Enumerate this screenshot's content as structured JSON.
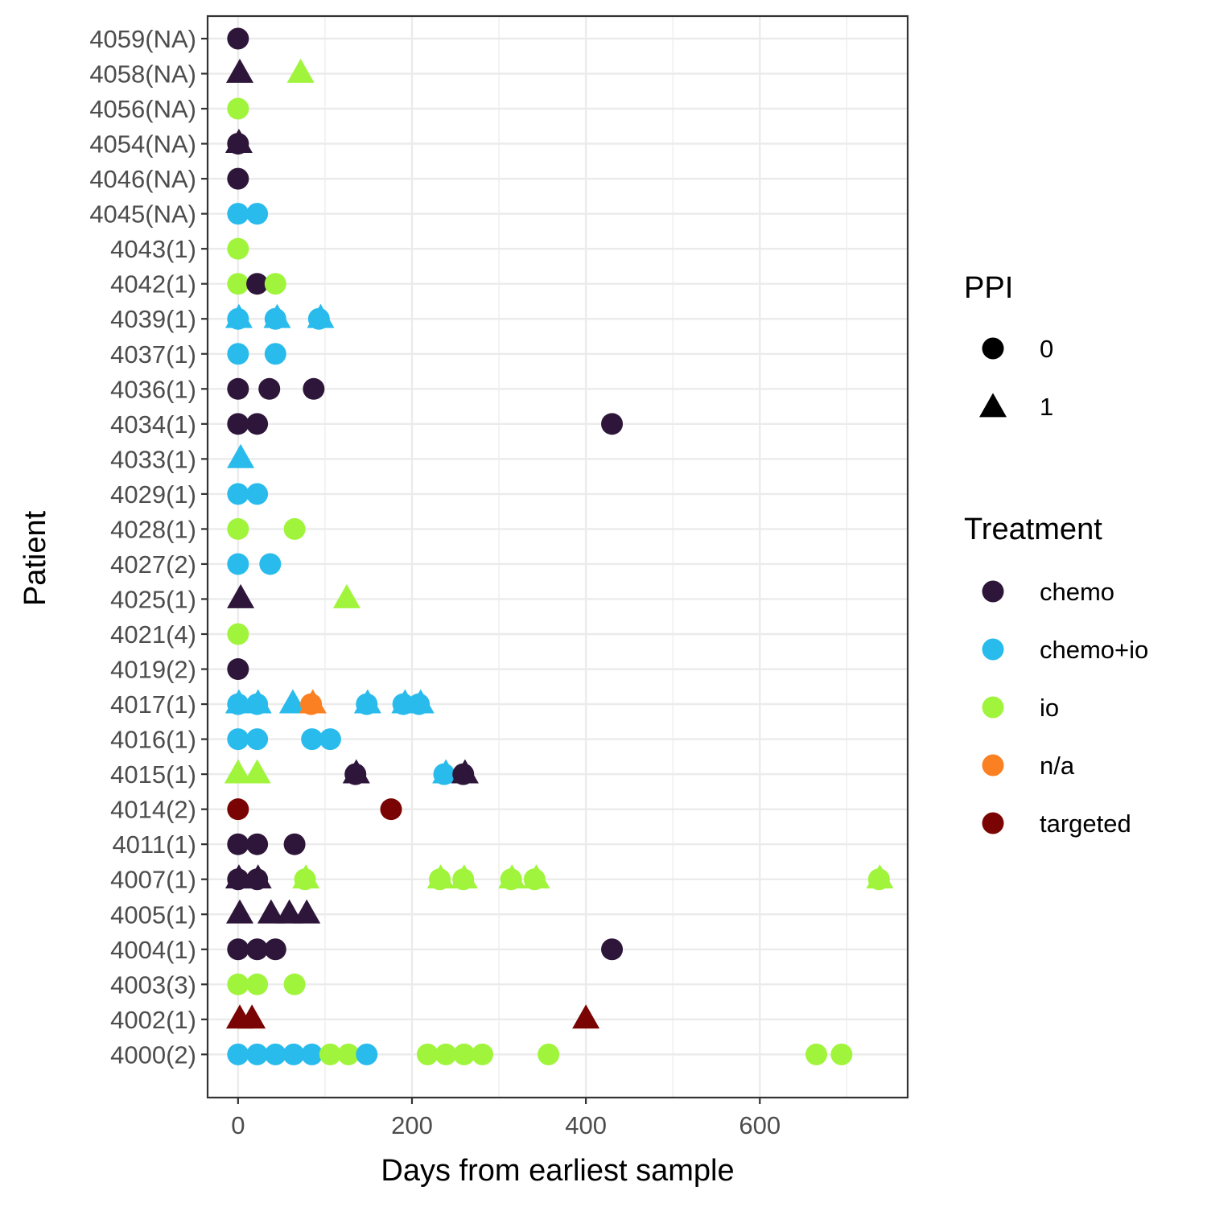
{
  "chart_data": {
    "type": "scatter",
    "title": "",
    "xlabel": "Days from earliest sample",
    "ylabel": "Patient",
    "xlim": [
      -35,
      770
    ],
    "x_ticks": [
      0,
      200,
      400,
      600
    ],
    "grid": true,
    "legend_position": "right",
    "patients": [
      "4000(2)",
      "4002(1)",
      "4003(3)",
      "4004(1)",
      "4005(1)",
      "4007(1)",
      "4011(1)",
      "4014(2)",
      "4015(1)",
      "4016(1)",
      "4017(1)",
      "4019(2)",
      "4021(4)",
      "4025(1)",
      "4027(2)",
      "4028(1)",
      "4029(1)",
      "4033(1)",
      "4034(1)",
      "4036(1)",
      "4037(1)",
      "4039(1)",
      "4042(1)",
      "4043(1)",
      "4045(NA)",
      "4046(NA)",
      "4054(NA)",
      "4056(NA)",
      "4058(NA)",
      "4059(NA)"
    ],
    "legend": {
      "ppi": {
        "title": "PPI",
        "entries": [
          {
            "value": "0",
            "shape": "circle"
          },
          {
            "value": "1",
            "shape": "triangle"
          }
        ]
      },
      "treatment": {
        "title": "Treatment",
        "entries": [
          {
            "name": "chemo",
            "color": "#2d1639"
          },
          {
            "name": "chemo+io",
            "color": "#29bbec"
          },
          {
            "name": "io",
            "color": "#a0f53c"
          },
          {
            "name": "n/a",
            "color": "#fb8022"
          },
          {
            "name": "targeted",
            "color": "#7a0403"
          }
        ]
      }
    },
    "points": [
      {
        "patient": "4059(NA)",
        "day": 0,
        "treatment": "chemo",
        "ppi": 0
      },
      {
        "patient": "4058(NA)",
        "day": 2,
        "treatment": "chemo",
        "ppi": 1
      },
      {
        "patient": "4058(NA)",
        "day": 72,
        "treatment": "io",
        "ppi": 1
      },
      {
        "patient": "4056(NA)",
        "day": 0,
        "treatment": "io",
        "ppi": 0
      },
      {
        "patient": "4054(NA)",
        "day": 0,
        "treatment": "chemo",
        "ppi": 0
      },
      {
        "patient": "4054(NA)",
        "day": 1,
        "treatment": "chemo",
        "ppi": 1
      },
      {
        "patient": "4046(NA)",
        "day": 0,
        "treatment": "chemo",
        "ppi": 0
      },
      {
        "patient": "4045(NA)",
        "day": 0,
        "treatment": "chemo+io",
        "ppi": 0
      },
      {
        "patient": "4045(NA)",
        "day": 22,
        "treatment": "chemo+io",
        "ppi": 0
      },
      {
        "patient": "4043(1)",
        "day": 0,
        "treatment": "io",
        "ppi": 0
      },
      {
        "patient": "4042(1)",
        "day": 0,
        "treatment": "io",
        "ppi": 0
      },
      {
        "patient": "4042(1)",
        "day": 22,
        "treatment": "chemo",
        "ppi": 0
      },
      {
        "patient": "4042(1)",
        "day": 43,
        "treatment": "io",
        "ppi": 0
      },
      {
        "patient": "4039(1)",
        "day": 0,
        "treatment": "chemo+io",
        "ppi": 0
      },
      {
        "patient": "4039(1)",
        "day": 1,
        "treatment": "chemo+io",
        "ppi": 1
      },
      {
        "patient": "4039(1)",
        "day": 43,
        "treatment": "chemo+io",
        "ppi": 0
      },
      {
        "patient": "4039(1)",
        "day": 45,
        "treatment": "chemo+io",
        "ppi": 1
      },
      {
        "patient": "4039(1)",
        "day": 93,
        "treatment": "chemo+io",
        "ppi": 0
      },
      {
        "patient": "4039(1)",
        "day": 95,
        "treatment": "chemo+io",
        "ppi": 1
      },
      {
        "patient": "4037(1)",
        "day": 0,
        "treatment": "chemo+io",
        "ppi": 0
      },
      {
        "patient": "4037(1)",
        "day": 43,
        "treatment": "chemo+io",
        "ppi": 0
      },
      {
        "patient": "4036(1)",
        "day": 0,
        "treatment": "chemo",
        "ppi": 0
      },
      {
        "patient": "4036(1)",
        "day": 36,
        "treatment": "chemo",
        "ppi": 0
      },
      {
        "patient": "4036(1)",
        "day": 87,
        "treatment": "chemo",
        "ppi": 0
      },
      {
        "patient": "4034(1)",
        "day": 0,
        "treatment": "chemo",
        "ppi": 0
      },
      {
        "patient": "4034(1)",
        "day": 22,
        "treatment": "chemo",
        "ppi": 0
      },
      {
        "patient": "4034(1)",
        "day": 430,
        "treatment": "chemo",
        "ppi": 0
      },
      {
        "patient": "4033(1)",
        "day": 3,
        "treatment": "chemo+io",
        "ppi": 1
      },
      {
        "patient": "4029(1)",
        "day": 0,
        "treatment": "chemo+io",
        "ppi": 0
      },
      {
        "patient": "4029(1)",
        "day": 22,
        "treatment": "chemo+io",
        "ppi": 0
      },
      {
        "patient": "4028(1)",
        "day": 0,
        "treatment": "io",
        "ppi": 0
      },
      {
        "patient": "4028(1)",
        "day": 65,
        "treatment": "io",
        "ppi": 0
      },
      {
        "patient": "4027(2)",
        "day": 0,
        "treatment": "chemo+io",
        "ppi": 0
      },
      {
        "patient": "4027(2)",
        "day": 37,
        "treatment": "chemo+io",
        "ppi": 0
      },
      {
        "patient": "4025(1)",
        "day": 3,
        "treatment": "chemo",
        "ppi": 1
      },
      {
        "patient": "4025(1)",
        "day": 125,
        "treatment": "io",
        "ppi": 1
      },
      {
        "patient": "4021(4)",
        "day": 0,
        "treatment": "io",
        "ppi": 0
      },
      {
        "patient": "4019(2)",
        "day": 0,
        "treatment": "chemo",
        "ppi": 0
      },
      {
        "patient": "4017(1)",
        "day": 0,
        "treatment": "chemo+io",
        "ppi": 0
      },
      {
        "patient": "4017(1)",
        "day": 1,
        "treatment": "chemo+io",
        "ppi": 1
      },
      {
        "patient": "4017(1)",
        "day": 22,
        "treatment": "chemo+io",
        "ppi": 0
      },
      {
        "patient": "4017(1)",
        "day": 23,
        "treatment": "chemo+io",
        "ppi": 1
      },
      {
        "patient": "4017(1)",
        "day": 63,
        "treatment": "chemo+io",
        "ppi": 1
      },
      {
        "patient": "4017(1)",
        "day": 84,
        "treatment": "n/a",
        "ppi": 0
      },
      {
        "patient": "4017(1)",
        "day": 86,
        "treatment": "n/a",
        "ppi": 1
      },
      {
        "patient": "4017(1)",
        "day": 148,
        "treatment": "chemo+io",
        "ppi": 0
      },
      {
        "patient": "4017(1)",
        "day": 149,
        "treatment": "chemo+io",
        "ppi": 1
      },
      {
        "patient": "4017(1)",
        "day": 190,
        "treatment": "chemo+io",
        "ppi": 0
      },
      {
        "patient": "4017(1)",
        "day": 192,
        "treatment": "chemo+io",
        "ppi": 1
      },
      {
        "patient": "4017(1)",
        "day": 208,
        "treatment": "chemo+io",
        "ppi": 0
      },
      {
        "patient": "4017(1)",
        "day": 210,
        "treatment": "chemo+io",
        "ppi": 1
      },
      {
        "patient": "4016(1)",
        "day": 0,
        "treatment": "chemo+io",
        "ppi": 0
      },
      {
        "patient": "4016(1)",
        "day": 22,
        "treatment": "chemo+io",
        "ppi": 0
      },
      {
        "patient": "4016(1)",
        "day": 85,
        "treatment": "chemo+io",
        "ppi": 0
      },
      {
        "patient": "4016(1)",
        "day": 106,
        "treatment": "chemo+io",
        "ppi": 0
      },
      {
        "patient": "4015(1)",
        "day": 0,
        "treatment": "io",
        "ppi": 1
      },
      {
        "patient": "4015(1)",
        "day": 22,
        "treatment": "io",
        "ppi": 1
      },
      {
        "patient": "4015(1)",
        "day": 135,
        "treatment": "chemo",
        "ppi": 0
      },
      {
        "patient": "4015(1)",
        "day": 136,
        "treatment": "chemo",
        "ppi": 1
      },
      {
        "patient": "4015(1)",
        "day": 237,
        "treatment": "chemo+io",
        "ppi": 0
      },
      {
        "patient": "4015(1)",
        "day": 239,
        "treatment": "chemo+io",
        "ppi": 1
      },
      {
        "patient": "4015(1)",
        "day": 259,
        "treatment": "chemo",
        "ppi": 0
      },
      {
        "patient": "4015(1)",
        "day": 261,
        "treatment": "chemo",
        "ppi": 1
      },
      {
        "patient": "4014(2)",
        "day": 0,
        "treatment": "targeted",
        "ppi": 0
      },
      {
        "patient": "4014(2)",
        "day": 176,
        "treatment": "targeted",
        "ppi": 0
      },
      {
        "patient": "4011(1)",
        "day": 0,
        "treatment": "chemo",
        "ppi": 0
      },
      {
        "patient": "4011(1)",
        "day": 22,
        "treatment": "chemo",
        "ppi": 0
      },
      {
        "patient": "4011(1)",
        "day": 65,
        "treatment": "chemo",
        "ppi": 0
      },
      {
        "patient": "4007(1)",
        "day": 0,
        "treatment": "chemo",
        "ppi": 0
      },
      {
        "patient": "4007(1)",
        "day": 1,
        "treatment": "chemo",
        "ppi": 1
      },
      {
        "patient": "4007(1)",
        "day": 22,
        "treatment": "chemo",
        "ppi": 0
      },
      {
        "patient": "4007(1)",
        "day": 23,
        "treatment": "chemo",
        "ppi": 1
      },
      {
        "patient": "4007(1)",
        "day": 77,
        "treatment": "io",
        "ppi": 0
      },
      {
        "patient": "4007(1)",
        "day": 78,
        "treatment": "io",
        "ppi": 1
      },
      {
        "patient": "4007(1)",
        "day": 232,
        "treatment": "io",
        "ppi": 0
      },
      {
        "patient": "4007(1)",
        "day": 233,
        "treatment": "io",
        "ppi": 1
      },
      {
        "patient": "4007(1)",
        "day": 259,
        "treatment": "io",
        "ppi": 0
      },
      {
        "patient": "4007(1)",
        "day": 260,
        "treatment": "io",
        "ppi": 1
      },
      {
        "patient": "4007(1)",
        "day": 314,
        "treatment": "io",
        "ppi": 0
      },
      {
        "patient": "4007(1)",
        "day": 315,
        "treatment": "io",
        "ppi": 1
      },
      {
        "patient": "4007(1)",
        "day": 341,
        "treatment": "io",
        "ppi": 0
      },
      {
        "patient": "4007(1)",
        "day": 343,
        "treatment": "io",
        "ppi": 1
      },
      {
        "patient": "4007(1)",
        "day": 737,
        "treatment": "io",
        "ppi": 0
      },
      {
        "patient": "4007(1)",
        "day": 738,
        "treatment": "io",
        "ppi": 1
      },
      {
        "patient": "4005(1)",
        "day": 2,
        "treatment": "chemo",
        "ppi": 1
      },
      {
        "patient": "4005(1)",
        "day": 38,
        "treatment": "chemo",
        "ppi": 1
      },
      {
        "patient": "4005(1)",
        "day": 59,
        "treatment": "chemo",
        "ppi": 1
      },
      {
        "patient": "4005(1)",
        "day": 79,
        "treatment": "chemo",
        "ppi": 1
      },
      {
        "patient": "4004(1)",
        "day": 0,
        "treatment": "chemo",
        "ppi": 0
      },
      {
        "patient": "4004(1)",
        "day": 22,
        "treatment": "chemo",
        "ppi": 0
      },
      {
        "patient": "4004(1)",
        "day": 43,
        "treatment": "chemo",
        "ppi": 0
      },
      {
        "patient": "4004(1)",
        "day": 430,
        "treatment": "chemo",
        "ppi": 0
      },
      {
        "patient": "4003(3)",
        "day": 0,
        "treatment": "io",
        "ppi": 0
      },
      {
        "patient": "4003(3)",
        "day": 22,
        "treatment": "io",
        "ppi": 0
      },
      {
        "patient": "4003(3)",
        "day": 65,
        "treatment": "io",
        "ppi": 0
      },
      {
        "patient": "4002(1)",
        "day": 2,
        "treatment": "targeted",
        "ppi": 1
      },
      {
        "patient": "4002(1)",
        "day": 16,
        "treatment": "targeted",
        "ppi": 1
      },
      {
        "patient": "4002(1)",
        "day": 400,
        "treatment": "targeted",
        "ppi": 1
      },
      {
        "patient": "4000(2)",
        "day": 0,
        "treatment": "chemo+io",
        "ppi": 0
      },
      {
        "patient": "4000(2)",
        "day": 22,
        "treatment": "chemo+io",
        "ppi": 0
      },
      {
        "patient": "4000(2)",
        "day": 43,
        "treatment": "chemo+io",
        "ppi": 0
      },
      {
        "patient": "4000(2)",
        "day": 64,
        "treatment": "chemo+io",
        "ppi": 0
      },
      {
        "patient": "4000(2)",
        "day": 85,
        "treatment": "chemo+io",
        "ppi": 0
      },
      {
        "patient": "4000(2)",
        "day": 106,
        "treatment": "io",
        "ppi": 0
      },
      {
        "patient": "4000(2)",
        "day": 127,
        "treatment": "io",
        "ppi": 0
      },
      {
        "patient": "4000(2)",
        "day": 148,
        "treatment": "chemo+io",
        "ppi": 0
      },
      {
        "patient": "4000(2)",
        "day": 218,
        "treatment": "io",
        "ppi": 0
      },
      {
        "patient": "4000(2)",
        "day": 239,
        "treatment": "io",
        "ppi": 0
      },
      {
        "patient": "4000(2)",
        "day": 260,
        "treatment": "io",
        "ppi": 0
      },
      {
        "patient": "4000(2)",
        "day": 281,
        "treatment": "io",
        "ppi": 0
      },
      {
        "patient": "4000(2)",
        "day": 357,
        "treatment": "io",
        "ppi": 0
      },
      {
        "patient": "4000(2)",
        "day": 665,
        "treatment": "io",
        "ppi": 0
      },
      {
        "patient": "4000(2)",
        "day": 694,
        "treatment": "io",
        "ppi": 0
      }
    ]
  }
}
